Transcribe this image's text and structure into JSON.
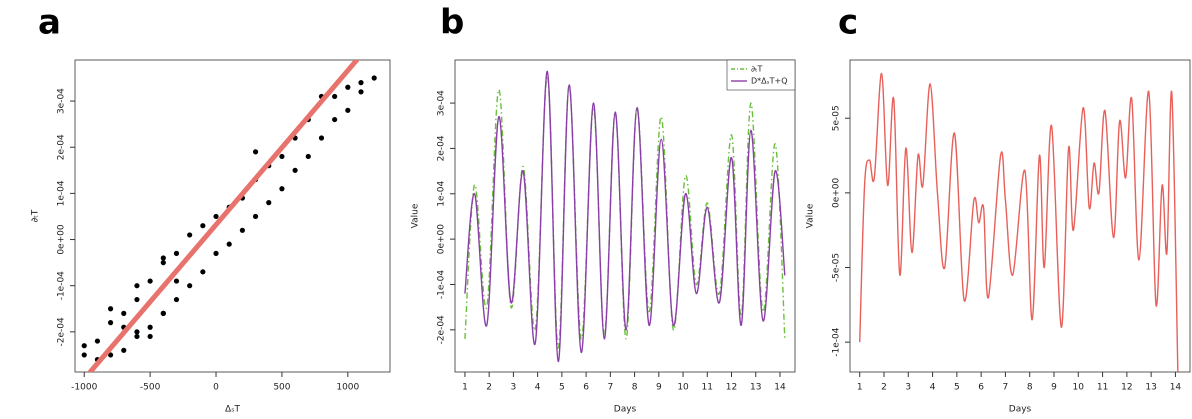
{
  "chart_data": [
    {
      "type": "scatter",
      "title": "a",
      "x_label": "ΔₛT",
      "y_label": "∂ₜT",
      "xlim": [
        -1070,
        1320
      ],
      "ylim": [
        -0.000287,
        0.000389
      ],
      "xticks": [
        -1000,
        -500,
        0,
        500,
        1000
      ],
      "yticks": [
        {
          "value": -0.0002,
          "label": "-2e-04"
        },
        {
          "value": -0.0001,
          "label": "-1e-04"
        },
        {
          "value": 0,
          "label": "0e+00"
        },
        {
          "value": 0.0001,
          "label": "1e-04"
        },
        {
          "value": 0.0002,
          "label": "2e-04"
        },
        {
          "value": 0.0003,
          "label": "3e-04"
        }
      ],
      "points": {
        "color": "#000000",
        "x": [
          -1000,
          -900,
          -800,
          -700,
          -600,
          -500,
          -400,
          -300,
          -200,
          -100,
          0,
          100,
          200,
          300,
          400,
          500,
          600,
          700,
          800,
          900,
          1000,
          1100,
          1200,
          1100,
          1000,
          900,
          800,
          700,
          600,
          500,
          400,
          300,
          200,
          100,
          0,
          -100,
          -200,
          -300,
          -400,
          -500,
          -600,
          -700,
          -800,
          -900,
          -1000,
          -700,
          -600,
          -500,
          -400,
          -800,
          -600,
          -400,
          300,
          -300
        ],
        "y": [
          -0.00023,
          -0.00022,
          -0.00018,
          -0.00016,
          -0.0001,
          -9e-05,
          -5e-05,
          -3e-05,
          1e-05,
          3e-05,
          5e-05,
          7e-05,
          9e-05,
          0.00013,
          0.00016,
          0.00018,
          0.00022,
          0.00026,
          0.00031,
          0.00031,
          0.00033,
          0.00034,
          0.00035,
          0.00032,
          0.00028,
          0.00026,
          0.00022,
          0.00018,
          0.00015,
          0.00011,
          8e-05,
          5e-05,
          2e-05,
          -1e-05,
          -3e-05,
          -7e-05,
          -0.0001,
          -0.00013,
          -0.00016,
          -0.00019,
          -0.00021,
          -0.00024,
          -0.00025,
          -0.00026,
          -0.00025,
          -0.00019,
          -0.0002,
          -0.00021,
          -0.00016,
          -0.00015,
          -0.00013,
          -4e-05,
          0.00019,
          -9e-05
        ]
      },
      "fit_line": {
        "color": "#e8736c",
        "x": [
          -955,
          1068
        ],
        "y": [
          -0.000287,
          0.000389
        ]
      }
    },
    {
      "type": "line",
      "title": "b",
      "x_label": "Days",
      "y_label": "Value",
      "legend": "top-right",
      "xlim": [
        0.59,
        14.62
      ],
      "ylim": [
        -0.000293,
        0.000395
      ],
      "xticks": [
        1,
        2,
        3,
        4,
        5,
        6,
        7,
        8,
        9,
        10,
        11,
        12,
        13,
        14
      ],
      "yticks": [
        {
          "value": -0.0002,
          "label": "-2e-04"
        },
        {
          "value": -0.0001,
          "label": "-1e-04"
        },
        {
          "value": 0,
          "label": "0e+00"
        },
        {
          "value": 0.0001,
          "label": "1e-04"
        },
        {
          "value": 0.0002,
          "label": "2e-04"
        },
        {
          "value": 0.0003,
          "label": "3e-04"
        }
      ],
      "x": [
        1.0,
        1.4,
        1.9,
        2.4,
        2.9,
        3.4,
        3.9,
        4.4,
        4.85,
        5.3,
        5.8,
        6.3,
        6.75,
        7.2,
        7.65,
        8.1,
        8.6,
        9.1,
        9.6,
        10.1,
        10.55,
        11.0,
        11.5,
        12.0,
        12.4,
        12.8,
        13.3,
        13.8,
        14.2
      ],
      "series": [
        {
          "name": "∂ₜT",
          "color": "#6abf3c",
          "dash": "dashdot",
          "values": [
            -0.00022,
            0.00012,
            -0.00015,
            0.00033,
            -0.00015,
            0.00016,
            -0.0002,
            0.00036,
            -0.00024,
            0.00034,
            -0.00022,
            0.00029,
            -0.00021,
            0.00028,
            -0.00022,
            0.00029,
            -0.00016,
            0.00027,
            -0.0002,
            0.00014,
            -0.0001,
            8e-05,
            -0.00012,
            0.00023,
            -0.00017,
            0.0003,
            -0.00016,
            0.00021,
            -0.00022
          ]
        },
        {
          "name": "D*ΔₛT+Q",
          "color": "#8a3fa8",
          "dash": "solid",
          "values": [
            -0.00012,
            0.0001,
            -0.00019,
            0.00027,
            -0.00014,
            0.00015,
            -0.00023,
            0.00037,
            -0.00027,
            0.00034,
            -0.00025,
            0.0003,
            -0.00022,
            0.00028,
            -0.0002,
            0.00029,
            -0.00019,
            0.00022,
            -0.00019,
            0.0001,
            -0.00012,
            7e-05,
            -0.00014,
            0.00018,
            -0.00019,
            0.00024,
            -0.00018,
            0.00015,
            -8e-05
          ]
        }
      ]
    },
    {
      "type": "line",
      "title": "c",
      "x_label": "Days",
      "y_label": "Value",
      "xlim": [
        0.6,
        14.6
      ],
      "ylim": [
        -0.00012,
        8.9e-05
      ],
      "xticks": [
        1,
        2,
        3,
        4,
        5,
        6,
        7,
        8,
        9,
        10,
        11,
        12,
        13,
        14
      ],
      "yticks": [
        {
          "value": -0.0001,
          "label": "-1e-04"
        },
        {
          "value": -5e-05,
          "label": "-5e-05"
        },
        {
          "value": 0,
          "label": "0e+00"
        },
        {
          "value": 5e-05,
          "label": "5e-05"
        }
      ],
      "x": [
        1.0,
        1.2,
        1.4,
        1.6,
        1.9,
        2.15,
        2.4,
        2.65,
        2.9,
        3.15,
        3.4,
        3.6,
        3.9,
        4.2,
        4.5,
        4.9,
        5.3,
        5.7,
        5.9,
        6.1,
        6.3,
        6.8,
        7.0,
        7.3,
        7.8,
        8.1,
        8.4,
        8.6,
        8.9,
        9.3,
        9.6,
        9.8,
        10.2,
        10.45,
        10.65,
        10.85,
        11.1,
        11.45,
        11.7,
        11.95,
        12.2,
        12.5,
        12.9,
        13.2,
        13.45,
        13.65,
        13.85,
        14.1
      ],
      "series": [
        {
          "color": "#e8605a",
          "dash": "solid",
          "values": [
            -0.0001,
            5e-06,
            2.2e-05,
            1e-05,
            8e-05,
            5e-06,
            6.3e-05,
            -5.5e-05,
            3e-05,
            -4e-05,
            2.5e-05,
            5e-06,
            7.3e-05,
            0,
            -5e-05,
            4e-05,
            -7.2e-05,
            -5e-06,
            -2e-05,
            -1e-05,
            -7e-05,
            2.5e-05,
            -5e-06,
            -5.5e-05,
            1.5e-05,
            -8.5e-05,
            2.5e-05,
            -5e-05,
            4.5e-05,
            -9e-05,
            3e-05,
            -2.5e-05,
            5.7e-05,
            -1e-05,
            2e-05,
            0,
            5.5e-05,
            -3e-05,
            4.8e-05,
            1e-05,
            6.3e-05,
            -4.5e-05,
            6.8e-05,
            -7.5e-05,
            5e-06,
            -4e-05,
            6.7e-05,
            -0.00012
          ]
        }
      ]
    }
  ]
}
